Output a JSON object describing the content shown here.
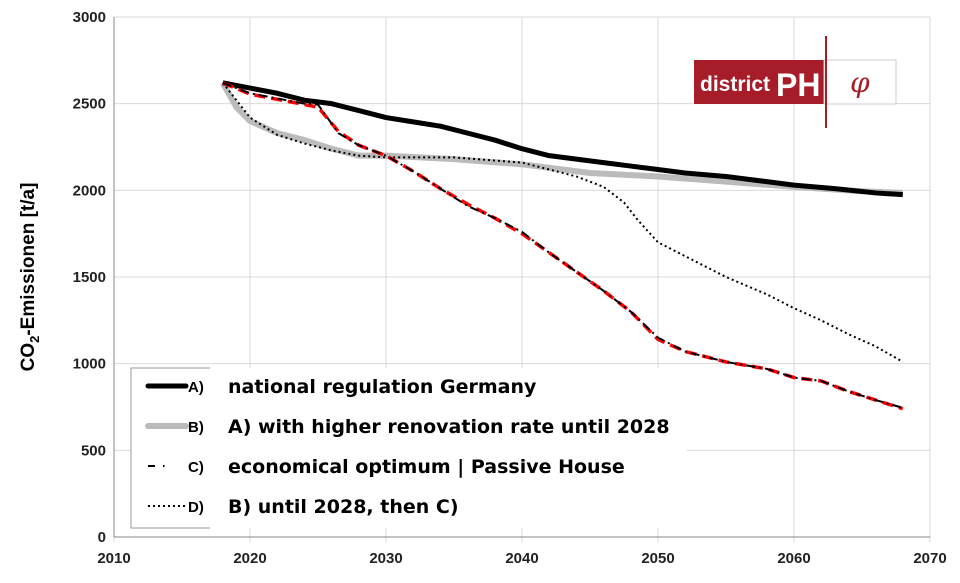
{
  "chart_data": {
    "type": "line",
    "xlabel": "",
    "ylabel": "CO2-Emissionen [t/a]",
    "ylabel_parts": {
      "pre": "CO",
      "sub": "2",
      "post": "-Emissionen [t/a]"
    },
    "xlim": [
      2010,
      2070
    ],
    "ylim": [
      0,
      3000
    ],
    "xticks": [
      2010,
      2020,
      2030,
      2040,
      2050,
      2060,
      2070
    ],
    "yticks": [
      0,
      500,
      1000,
      1500,
      2000,
      2500,
      3000
    ],
    "grid": "horizontal and vertical",
    "legend_placement": "bottom-left",
    "series": [
      {
        "key": "A)",
        "name": "national regulation Germany",
        "color": "#000000",
        "style": "solid-thick",
        "x": [
          2018,
          2020,
          2022,
          2024,
          2026,
          2028,
          2030,
          2032,
          2034,
          2036,
          2038,
          2040,
          2042,
          2044,
          2046,
          2048,
          2050,
          2052,
          2055,
          2058,
          2060,
          2063,
          2066,
          2068
        ],
        "y": [
          2620,
          2590,
          2560,
          2520,
          2500,
          2460,
          2420,
          2395,
          2370,
          2330,
          2290,
          2240,
          2200,
          2180,
          2160,
          2140,
          2120,
          2100,
          2080,
          2050,
          2030,
          2010,
          1985,
          1975
        ]
      },
      {
        "key": "B)",
        "name": "A) with higher renovation rate until 2028",
        "color": "#bbbbbb",
        "style": "solid-thick",
        "x": [
          2018,
          2019,
          2020,
          2022,
          2024,
          2026,
          2028,
          2030,
          2035,
          2040,
          2045,
          2050,
          2055,
          2060,
          2065,
          2068
        ],
        "y": [
          2620,
          2480,
          2400,
          2330,
          2290,
          2240,
          2200,
          2200,
          2180,
          2150,
          2100,
          2080,
          2050,
          2020,
          1995,
          1985
        ]
      },
      {
        "key": "C)",
        "name": "economical optimum | Passive House",
        "color": "#000000",
        "style": "dash-dot",
        "x": [
          2018,
          2020,
          2022,
          2024,
          2025,
          2026.5,
          2028,
          2030,
          2032,
          2034,
          2036,
          2038,
          2040,
          2042,
          2044,
          2046,
          2048,
          2050,
          2052,
          2055,
          2058,
          2060,
          2062,
          2064,
          2066,
          2068
        ],
        "y": [
          2620,
          2560,
          2530,
          2500,
          2495,
          2330,
          2260,
          2200,
          2110,
          2010,
          1910,
          1840,
          1760,
          1640,
          1530,
          1420,
          1300,
          1150,
          1070,
          1010,
          970,
          920,
          900,
          840,
          790,
          745
        ]
      },
      {
        "key": "D)",
        "name": "B) until 2028, then C)",
        "color": "#000000",
        "style": "dotted",
        "x": [
          2018,
          2020,
          2022,
          2024,
          2026,
          2028,
          2030,
          2035,
          2040,
          2042,
          2044,
          2046,
          2047.5,
          2048.5,
          2050,
          2052,
          2055,
          2058,
          2060,
          2062,
          2064,
          2066,
          2068
        ],
        "y": [
          2620,
          2420,
          2320,
          2270,
          2230,
          2200,
          2190,
          2190,
          2160,
          2120,
          2080,
          2020,
          1930,
          1830,
          1700,
          1620,
          1500,
          1400,
          1320,
          1250,
          1170,
          1100,
          1010
        ]
      },
      {
        "key": "",
        "name": "",
        "color": "#ff0000",
        "style": "dashed-red",
        "x": [
          2018,
          2020,
          2022,
          2024,
          2025,
          2026.5,
          2028,
          2030,
          2032,
          2034,
          2036,
          2038,
          2040,
          2042,
          2044,
          2046,
          2048,
          2050,
          2052,
          2055,
          2058,
          2060,
          2062,
          2064,
          2066,
          2068
        ],
        "y": [
          2620,
          2555,
          2525,
          2495,
          2480,
          2340,
          2260,
          2200,
          2110,
          2010,
          1920,
          1840,
          1750,
          1640,
          1530,
          1420,
          1300,
          1140,
          1070,
          1010,
          970,
          920,
          900,
          840,
          790,
          740
        ]
      }
    ]
  },
  "logo": {
    "text_left": "district",
    "text_bold": "PH",
    "symbol": "φ",
    "color": "#a61c28"
  }
}
